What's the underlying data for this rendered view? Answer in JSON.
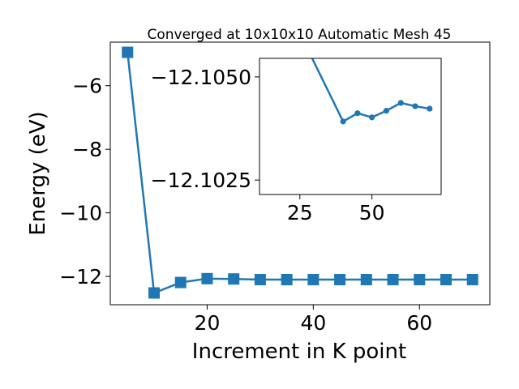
{
  "figure": {
    "title": "Converged at 10x10x10 Automatic Mesh 45",
    "series_color": "#1f77b4"
  },
  "chart_data": [
    {
      "type": "line",
      "role": "main",
      "title": "Converged at 10x10x10 Automatic Mesh 45",
      "xlabel": "Increment in K point",
      "ylabel": "Energy (eV)",
      "xlim": [
        1.75,
        73.25
      ],
      "ylim": [
        -12.89,
        -4.63
      ],
      "xticks": [
        20,
        40,
        60
      ],
      "xtick_labels": [
        "20",
        "40",
        "60"
      ],
      "yticks": [
        -6,
        -8,
        -10,
        -12
      ],
      "ytick_labels": [
        "−6",
        "−8",
        "−10",
        "−12"
      ],
      "grid": false,
      "marker": "square",
      "series": [
        {
          "x": [
            5,
            10,
            15,
            20,
            25,
            30,
            35,
            40,
            45,
            50,
            55,
            60,
            65,
            70
          ],
          "y": [
            -4.95,
            -12.52,
            -12.19,
            -12.07,
            -12.08,
            -12.1,
            -12.1,
            -12.1,
            -12.1,
            -12.1,
            -12.1,
            -12.1,
            -12.1,
            -12.1
          ]
        }
      ]
    },
    {
      "type": "line",
      "role": "inset",
      "xlim": [
        11,
        74
      ],
      "ylim": [
        -12.10215,
        -12.10545
      ],
      "xticks": [
        25,
        50
      ],
      "xtick_labels": [
        "25",
        "50"
      ],
      "yticks": [
        -12.105,
        -12.1025
      ],
      "ytick_labels": [
        "−12.1050",
        "−12.1025"
      ],
      "grid": false,
      "marker": "circle",
      "series": [
        {
          "x": [
            24,
            40,
            45,
            50,
            55,
            60,
            65,
            70
          ],
          "y": [
            -12.1062,
            -12.10392,
            -12.10412,
            -12.10402,
            -12.10418,
            -12.10437,
            -12.10429,
            -12.10423
          ]
        }
      ]
    }
  ]
}
